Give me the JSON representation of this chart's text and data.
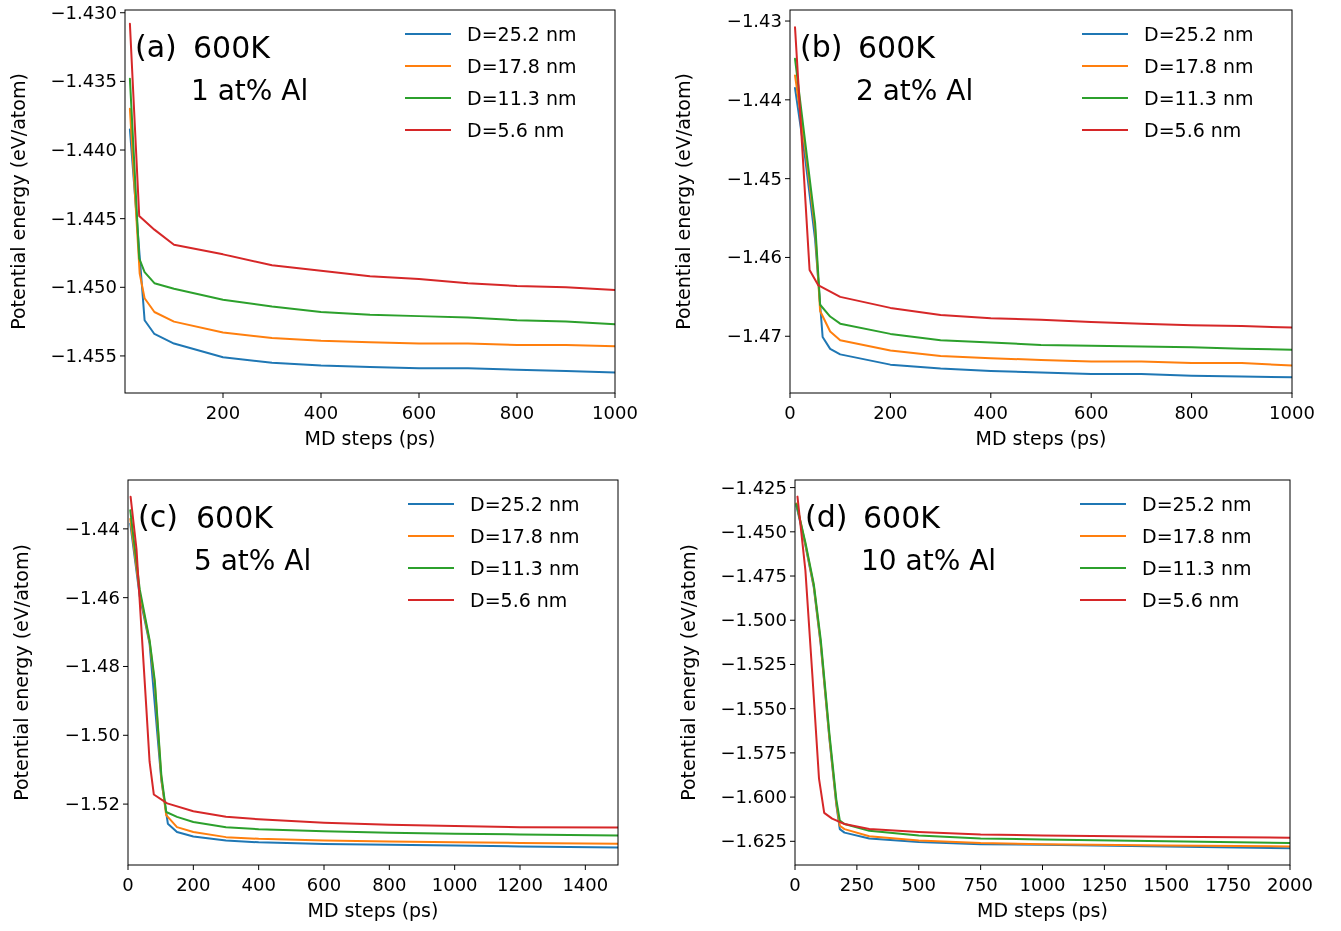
{
  "chart_data": [
    {
      "type": "line",
      "xlabel": "MD steps (ps)",
      "ylabel": "Potential energy (eV/atom)",
      "annotations": [
        "(a)",
        "600K",
        "1 at% Al"
      ],
      "legend": "top right",
      "xlim": [
        0,
        1000
      ],
      "xticks": [
        200,
        400,
        600,
        800,
        1000
      ],
      "ylim": [
        -1.4577,
        -1.4298
      ],
      "yticks": [
        {
          "value": -1.43,
          "label": "−1.430"
        },
        {
          "value": -1.435,
          "label": "−1.435"
        },
        {
          "value": -1.44,
          "label": "−1.440"
        },
        {
          "value": -1.445,
          "label": "−1.445"
        },
        {
          "value": -1.45,
          "label": "−1.450"
        },
        {
          "value": -1.455,
          "label": "−1.455"
        }
      ],
      "series": [
        {
          "name": "D=25.2 nm",
          "color": "#1f77b4",
          "x": [
            10,
            40,
            60,
            100,
            200,
            300,
            400,
            500,
            600,
            700,
            800,
            900,
            1000
          ],
          "values": [
            -1.4385,
            -1.4524,
            -1.4534,
            -1.4541,
            -1.4551,
            -1.4555,
            -1.4557,
            -1.4558,
            -1.4559,
            -1.4559,
            -1.456,
            -1.4561,
            -1.4562
          ]
        },
        {
          "name": "D=17.8 nm",
          "color": "#ff7f0e",
          "x": [
            10,
            30,
            40,
            60,
            100,
            200,
            300,
            400,
            500,
            600,
            700,
            800,
            900,
            1000
          ],
          "values": [
            -1.437,
            -1.449,
            -1.4508,
            -1.4518,
            -1.4525,
            -1.4533,
            -1.4537,
            -1.4539,
            -1.454,
            -1.4541,
            -1.4541,
            -1.4542,
            -1.4542,
            -1.4543
          ]
        },
        {
          "name": "D=11.3 nm",
          "color": "#2ca02c",
          "x": [
            10,
            29,
            40,
            60,
            100,
            200,
            300,
            400,
            500,
            600,
            700,
            800,
            900,
            1000
          ],
          "values": [
            -1.4348,
            -1.4479,
            -1.4489,
            -1.4497,
            -1.4501,
            -1.4509,
            -1.4514,
            -1.4518,
            -1.452,
            -1.4521,
            -1.4522,
            -1.4524,
            -1.4525,
            -1.4527
          ]
        },
        {
          "name": "D=5.6 nm",
          "color": "#d62728",
          "x": [
            10,
            29,
            60,
            100,
            200,
            300,
            400,
            500,
            600,
            700,
            800,
            900,
            1000
          ],
          "values": [
            -1.4308,
            -1.4448,
            -1.4458,
            -1.4469,
            -1.4476,
            -1.4484,
            -1.4488,
            -1.4492,
            -1.4494,
            -1.4497,
            -1.4499,
            -1.45,
            -1.4502
          ]
        }
      ]
    },
    {
      "type": "line",
      "xlabel": "MD steps (ps)",
      "ylabel": "Potential energy (eV/atom)",
      "annotations": [
        "(b)",
        "600K",
        "2 at% Al"
      ],
      "legend": "top right",
      "xlim": [
        0,
        1000
      ],
      "xticks": [
        0,
        200,
        400,
        600,
        800,
        1000
      ],
      "ylim": [
        -1.4772,
        -1.4286
      ],
      "yticks": [
        {
          "value": -1.43,
          "label": "−1.43"
        },
        {
          "value": -1.44,
          "label": "−1.44"
        },
        {
          "value": -1.45,
          "label": "−1.45"
        },
        {
          "value": -1.46,
          "label": "−1.46"
        },
        {
          "value": -1.47,
          "label": "−1.47"
        }
      ],
      "series": [
        {
          "name": "D=25.2 nm",
          "color": "#1f77b4",
          "x": [
            10,
            30,
            50,
            65,
            80,
            100,
            200,
            300,
            400,
            500,
            600,
            700,
            800,
            900,
            1000
          ],
          "values": [
            -1.4385,
            -1.4473,
            -1.4577,
            -1.4701,
            -1.4716,
            -1.4723,
            -1.4736,
            -1.4741,
            -1.4744,
            -1.4746,
            -1.4748,
            -1.4748,
            -1.475,
            -1.4751,
            -1.4752
          ]
        },
        {
          "name": "D=17.8 nm",
          "color": "#ff7f0e",
          "x": [
            10,
            30,
            50,
            60,
            80,
            100,
            200,
            300,
            400,
            500,
            600,
            700,
            800,
            900,
            1000
          ],
          "values": [
            -1.4369,
            -1.446,
            -1.4564,
            -1.4668,
            -1.4694,
            -1.4705,
            -1.4718,
            -1.4725,
            -1.4728,
            -1.473,
            -1.4732,
            -1.4732,
            -1.4734,
            -1.4734,
            -1.4737
          ]
        },
        {
          "name": "D=11.3 nm",
          "color": "#2ca02c",
          "x": [
            10,
            30,
            50,
            60,
            80,
            100,
            200,
            300,
            400,
            500,
            600,
            700,
            800,
            900,
            1000
          ],
          "values": [
            -1.4348,
            -1.4452,
            -1.4556,
            -1.466,
            -1.4675,
            -1.4684,
            -1.4697,
            -1.4705,
            -1.4708,
            -1.4711,
            -1.4712,
            -1.4713,
            -1.4714,
            -1.4716,
            -1.4717
          ]
        },
        {
          "name": "D=5.6 nm",
          "color": "#d62728",
          "x": [
            10,
            39,
            56,
            100,
            200,
            300,
            400,
            500,
            600,
            700,
            800,
            900,
            1000
          ],
          "values": [
            -1.4308,
            -1.4616,
            -1.4635,
            -1.465,
            -1.4664,
            -1.4673,
            -1.4677,
            -1.4679,
            -1.4682,
            -1.4684,
            -1.4686,
            -1.4687,
            -1.4689
          ]
        }
      ]
    },
    {
      "type": "line",
      "xlabel": "MD steps (ps)",
      "ylabel": "Potential energy (eV/atom)",
      "annotations": [
        "(c)",
        "600K",
        "5 at% Al"
      ],
      "legend": "top right",
      "xlim": [
        0,
        1500
      ],
      "xticks": [
        0,
        200,
        400,
        600,
        800,
        1000,
        1200,
        1400
      ],
      "ylim": [
        -1.5377,
        -1.4258
      ],
      "yticks": [
        {
          "value": -1.44,
          "label": "−1.44"
        },
        {
          "value": -1.46,
          "label": "−1.46"
        },
        {
          "value": -1.48,
          "label": "−1.48"
        },
        {
          "value": -1.5,
          "label": "−1.50"
        },
        {
          "value": -1.52,
          "label": "−1.52"
        }
      ],
      "series": [
        {
          "name": "D=25.2 nm",
          "color": "#1f77b4",
          "x": [
            7,
            36,
            66,
            102,
            122,
            150,
            200,
            300,
            400,
            600,
            800,
            1000,
            1200,
            1500
          ],
          "values": [
            -1.4385,
            -1.4596,
            -1.4733,
            -1.513,
            -1.5257,
            -1.5281,
            -1.5294,
            -1.5306,
            -1.5311,
            -1.5316,
            -1.5318,
            -1.532,
            -1.5323,
            -1.5326
          ]
        },
        {
          "name": "D=17.8 nm",
          "color": "#ff7f0e",
          "x": [
            7,
            36,
            66,
            82,
            102,
            117,
            150,
            200,
            300,
            400,
            600,
            800,
            1000,
            1200,
            1500
          ],
          "values": [
            -1.4371,
            -1.4586,
            -1.4728,
            -1.485,
            -1.5125,
            -1.5232,
            -1.5267,
            -1.5281,
            -1.5296,
            -1.5301,
            -1.5306,
            -1.5309,
            -1.5311,
            -1.5313,
            -1.5315
          ]
        },
        {
          "name": "D=11.3 nm",
          "color": "#2ca02c",
          "x": [
            7,
            36,
            66,
            82,
            102,
            117,
            150,
            200,
            300,
            400,
            600,
            800,
            1000,
            1200,
            1500
          ],
          "values": [
            -1.4346,
            -1.4576,
            -1.4723,
            -1.4841,
            -1.5115,
            -1.5223,
            -1.5237,
            -1.5252,
            -1.5267,
            -1.5273,
            -1.5279,
            -1.5283,
            -1.5286,
            -1.5288,
            -1.5291
          ]
        },
        {
          "name": "D=5.6 nm",
          "color": "#d62728",
          "x": [
            8,
            26,
            56,
            66,
            79,
            120,
            200,
            300,
            400,
            600,
            800,
            1000,
            1200,
            1500
          ],
          "values": [
            -1.4307,
            -1.4459,
            -1.4919,
            -1.5076,
            -1.5172,
            -1.5198,
            -1.5221,
            -1.5237,
            -1.5244,
            -1.5254,
            -1.526,
            -1.5264,
            -1.5267,
            -1.5268
          ]
        }
      ]
    },
    {
      "type": "line",
      "xlabel": "MD steps (ps)",
      "ylabel": "Potential energy (eV/atom)",
      "annotations": [
        "(d)",
        "600K",
        "10 at% Al"
      ],
      "legend": "top right",
      "xlim": [
        0,
        2000
      ],
      "xticks": [
        0,
        250,
        500,
        750,
        1000,
        1250,
        1500,
        1750,
        2000
      ],
      "ylim": [
        -1.6384,
        -1.4207
      ],
      "yticks": [
        {
          "value": -1.425,
          "label": "−1.425"
        },
        {
          "value": -1.45,
          "label": "−1.450"
        },
        {
          "value": -1.475,
          "label": "−1.475"
        },
        {
          "value": -1.5,
          "label": "−1.500"
        },
        {
          "value": -1.525,
          "label": "−1.525"
        },
        {
          "value": -1.55,
          "label": "−1.550"
        },
        {
          "value": -1.575,
          "label": "−1.575"
        },
        {
          "value": -1.6,
          "label": "−1.600"
        },
        {
          "value": -1.625,
          "label": "−1.625"
        }
      ],
      "series": [
        {
          "name": "D=25.2 nm",
          "color": "#1f77b4",
          "x": [
            6,
            42,
            76,
            104,
            139,
            167,
            181,
            200,
            300,
            500,
            750,
            1000,
            1500,
            2000
          ],
          "values": [
            -1.4354,
            -1.4576,
            -1.4815,
            -1.514,
            -1.567,
            -1.6044,
            -1.6181,
            -1.6201,
            -1.6234,
            -1.6254,
            -1.6266,
            -1.627,
            -1.628,
            -1.6289
          ]
        },
        {
          "name": "D=17.8 nm",
          "color": "#ff7f0e",
          "x": [
            6,
            42,
            76,
            104,
            139,
            167,
            181,
            200,
            300,
            500,
            750,
            1000,
            1500,
            2000
          ],
          "values": [
            -1.434,
            -1.457,
            -1.4806,
            -1.513,
            -1.5661,
            -1.6034,
            -1.6162,
            -1.6181,
            -1.6221,
            -1.6246,
            -1.626,
            -1.6266,
            -1.6274,
            -1.6279
          ]
        },
        {
          "name": "D=11.3 nm",
          "color": "#2ca02c",
          "x": [
            6,
            42,
            76,
            104,
            139,
            167,
            181,
            200,
            300,
            500,
            750,
            1000,
            1500,
            2000
          ],
          "values": [
            -1.4344,
            -1.456,
            -1.4796,
            -1.511,
            -1.5641,
            -1.6014,
            -1.6132,
            -1.6152,
            -1.6191,
            -1.6217,
            -1.6234,
            -1.624,
            -1.625,
            -1.626
          ]
        },
        {
          "name": "D=5.6 nm",
          "color": "#d62728",
          "x": [
            10,
            42,
            70,
            97,
            118,
            150,
            200,
            300,
            500,
            750,
            1000,
            1500,
            2000
          ],
          "values": [
            -1.4301,
            -1.4718,
            -1.5307,
            -1.5896,
            -1.6089,
            -1.6122,
            -1.6152,
            -1.6181,
            -1.6197,
            -1.6211,
            -1.6217,
            -1.6224,
            -1.623
          ]
        }
      ]
    }
  ]
}
